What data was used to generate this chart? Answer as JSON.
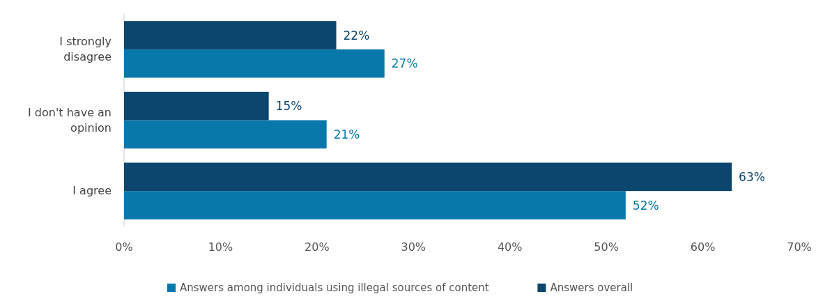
{
  "chart_data": {
    "type": "bar",
    "orientation": "horizontal",
    "categories": [
      "I strongly disagree",
      "I don't have an opinion",
      "I agree"
    ],
    "series": [
      {
        "name": "Answers among individuals using illegal sources of content",
        "color": "#0878ab",
        "values": [
          27,
          21,
          52
        ],
        "value_labels": [
          "27%",
          "21%",
          "52%"
        ]
      },
      {
        "name": "Answers overall",
        "color": "#0c456e",
        "values": [
          22,
          15,
          63
        ],
        "value_labels": [
          "22%",
          "15%",
          "63%"
        ]
      }
    ],
    "xlim": [
      0,
      70
    ],
    "xticks": [
      {
        "value": 0,
        "label": "0%"
      },
      {
        "value": 10,
        "label": "10%"
      },
      {
        "value": 20,
        "label": "20%"
      },
      {
        "value": 30,
        "label": "30%"
      },
      {
        "value": 40,
        "label": "40%"
      },
      {
        "value": 50,
        "label": "50%"
      },
      {
        "value": 60,
        "label": "60%"
      },
      {
        "value": 70,
        "label": "70%"
      }
    ],
    "legend": "bottom"
  }
}
